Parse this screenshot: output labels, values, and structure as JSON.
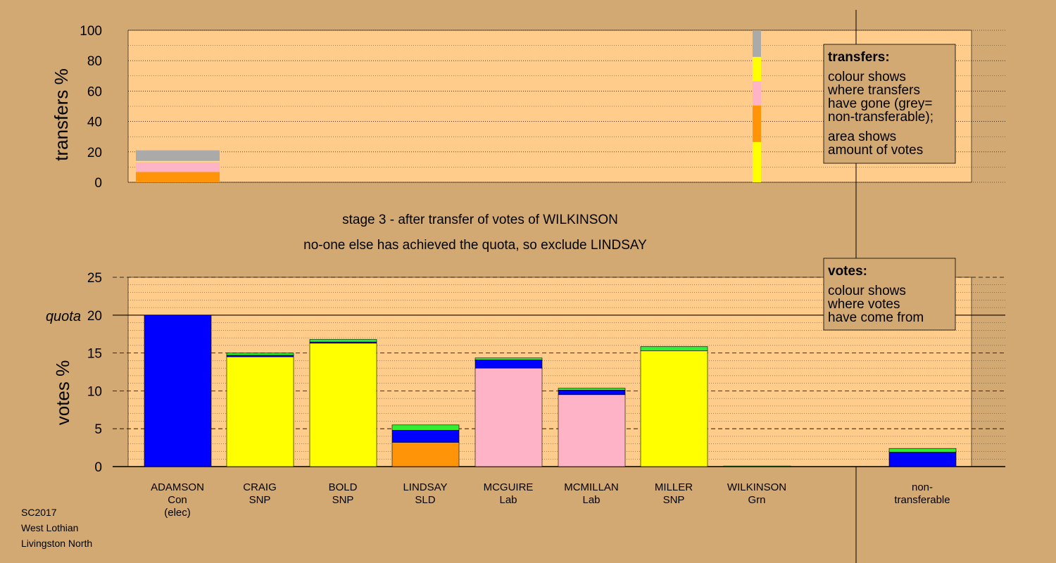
{
  "colors": {
    "background": "#d3a973",
    "panel": "#ffcc8c",
    "Con": "#0000ff",
    "SNP": "#ffff00",
    "SLD": "#ff9408",
    "Lab": "#ffb3c6",
    "Grn": "#33ee33",
    "non_transferable": "#aaaaaa"
  },
  "chart_data": [
    {
      "type": "bar",
      "ylabel": "transfers %",
      "ylim": [
        0,
        100
      ],
      "yticks": [
        0,
        20,
        40,
        60,
        80,
        100
      ],
      "grid": true,
      "columns": [
        {
          "name": "ADAMSON",
          "segments": [
            {
              "party": "SLD",
              "value": 0.8
            },
            {
              "party": "SLD",
              "value": 6.0
            },
            {
              "party": "Lab",
              "value": 6.5
            },
            {
              "party": "SNP",
              "value": 0.7
            },
            {
              "party": "non_transferable",
              "value": 7.0
            }
          ]
        },
        {
          "name": "WILKINSON",
          "segments": [
            {
              "party": "SNP",
              "value": 26.5
            },
            {
              "party": "SLD",
              "value": 24.0
            },
            {
              "party": "Lab",
              "value": 16.0
            },
            {
              "party": "SNP",
              "value": 16.0
            },
            {
              "party": "non_transferable",
              "value": 17.5
            }
          ]
        }
      ]
    },
    {
      "type": "bar",
      "ylabel": "votes %",
      "ylim": [
        0,
        25
      ],
      "yticks": [
        0,
        5,
        10,
        15,
        20,
        25
      ],
      "quota": 20,
      "quota_label": "quota",
      "grid": true,
      "categories": [
        "ADAMSON",
        "CRAIG",
        "BOLD",
        "LINDSAY",
        "MCGUIRE",
        "MCMILLAN",
        "MILLER",
        "WILKINSON",
        "non-transferable"
      ],
      "stacks": [
        [
          {
            "party": "Con",
            "value": 20.0
          }
        ],
        [
          {
            "party": "SNP",
            "value": 14.5
          },
          {
            "party": "Con",
            "value": 0.2
          },
          {
            "party": "Grn",
            "value": 0.3
          }
        ],
        [
          {
            "party": "SNP",
            "value": 16.3
          },
          {
            "party": "Con",
            "value": 0.15
          },
          {
            "party": "Grn",
            "value": 0.35
          }
        ],
        [
          {
            "party": "SLD",
            "value": 3.2
          },
          {
            "party": "Con",
            "value": 1.6
          },
          {
            "party": "Grn",
            "value": 0.7
          }
        ],
        [
          {
            "party": "Lab",
            "value": 13.0
          },
          {
            "party": "Con",
            "value": 1.1
          },
          {
            "party": "Grn",
            "value": 0.25
          }
        ],
        [
          {
            "party": "Lab",
            "value": 9.5
          },
          {
            "party": "Con",
            "value": 0.6
          },
          {
            "party": "Grn",
            "value": 0.25
          }
        ],
        [
          {
            "party": "SNP",
            "value": 15.3
          },
          {
            "party": "Grn",
            "value": 0.55
          }
        ],
        [
          {
            "party": "Grn",
            "value": 0.08
          }
        ],
        [
          {
            "party": "Con",
            "value": 1.9
          },
          {
            "party": "Grn",
            "value": 0.5
          }
        ]
      ]
    }
  ],
  "captions": {
    "stage": "stage 3 - after transfer of votes of WILKINSON",
    "action": "no-one else has achieved the quota, so exclude LINDSAY"
  },
  "candidates": [
    {
      "name": "ADAMSON",
      "party": "Con",
      "note": "(elec)"
    },
    {
      "name": "CRAIG",
      "party": "SNP",
      "note": ""
    },
    {
      "name": "BOLD",
      "party": "SNP",
      "note": ""
    },
    {
      "name": "LINDSAY",
      "party": "SLD",
      "note": ""
    },
    {
      "name": "MCGUIRE",
      "party": "Lab",
      "note": ""
    },
    {
      "name": "MCMILLAN",
      "party": "Lab",
      "note": ""
    },
    {
      "name": "MILLER",
      "party": "SNP",
      "note": ""
    },
    {
      "name": "WILKINSON",
      "party": "Grn",
      "note": ""
    }
  ],
  "nontransferable_label": [
    "non-",
    "transferable"
  ],
  "legend_transfers": {
    "title": "transfers:",
    "lines": [
      "colour shows",
      "where transfers",
      "have gone (grey=",
      "non-transferable);",
      "area shows",
      "amount of votes"
    ]
  },
  "legend_votes": {
    "title": "votes:",
    "lines": [
      "colour shows",
      "where votes",
      "have come from"
    ]
  },
  "footer": [
    "SC2017",
    "West Lothian",
    "Livingston North"
  ]
}
